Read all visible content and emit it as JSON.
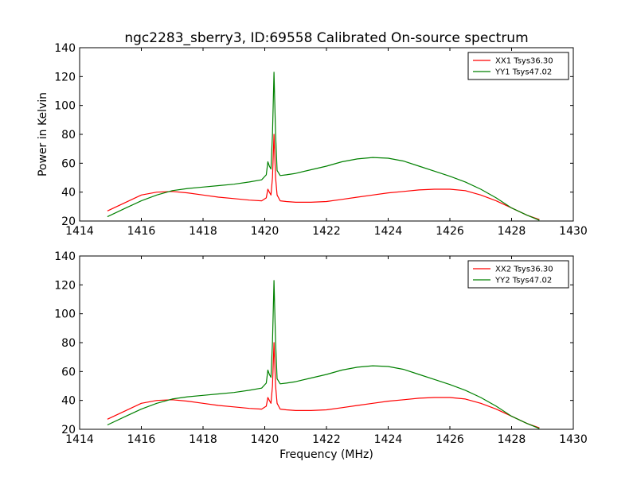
{
  "title": "ngc2283_sberry3, ID:69558 Calibrated On-source spectrum",
  "colors": {
    "XX": "#ff0000",
    "YY": "#008000"
  },
  "chart_data": [
    {
      "type": "line",
      "xlabel": "",
      "ylabel": "Power in Kelvin",
      "xlim": [
        1414,
        1430
      ],
      "ylim": [
        20,
        140
      ],
      "xticks": [
        "1414",
        "1416",
        "1418",
        "1420",
        "1422",
        "1424",
        "1426",
        "1428",
        "1430"
      ],
      "yticks": [
        "20",
        "40",
        "60",
        "80",
        "100",
        "120",
        "140"
      ],
      "legend_position": "top-right",
      "series": [
        {
          "name": "XX1 Tsys36.30",
          "color": "#ff0000",
          "x": [
            1414.9,
            1415.5,
            1416.0,
            1416.5,
            1417.0,
            1417.5,
            1418.0,
            1418.5,
            1419.0,
            1419.5,
            1419.9,
            1420.05,
            1420.1,
            1420.15,
            1420.2,
            1420.25,
            1420.3,
            1420.35,
            1420.4,
            1420.5,
            1420.7,
            1421.0,
            1421.5,
            1422.0,
            1422.5,
            1423.0,
            1423.5,
            1424.0,
            1424.5,
            1425.0,
            1425.5,
            1426.0,
            1426.5,
            1427.0,
            1427.5,
            1428.0,
            1428.5,
            1428.9
          ],
          "y": [
            27,
            33,
            38,
            40,
            40.5,
            39.5,
            38,
            36.5,
            35.5,
            34.5,
            34,
            36,
            42,
            40,
            38,
            50,
            80,
            50,
            38,
            34,
            33.5,
            33,
            33,
            33.5,
            35,
            36.5,
            38,
            39.5,
            40.5,
            41.5,
            42,
            42,
            41,
            38,
            34,
            29,
            24,
            21
          ]
        },
        {
          "name": "YY1 Tsys47.02",
          "color": "#008000",
          "x": [
            1414.9,
            1415.5,
            1416.0,
            1416.5,
            1417.0,
            1417.5,
            1418.0,
            1418.5,
            1419.0,
            1419.5,
            1419.9,
            1420.05,
            1420.1,
            1420.15,
            1420.2,
            1420.25,
            1420.3,
            1420.35,
            1420.4,
            1420.5,
            1420.7,
            1421.0,
            1421.5,
            1422.0,
            1422.5,
            1423.0,
            1423.5,
            1424.0,
            1424.5,
            1425.0,
            1425.5,
            1426.0,
            1426.5,
            1427.0,
            1427.5,
            1428.0,
            1428.5,
            1428.9
          ],
          "y": [
            23,
            29,
            34,
            38,
            41,
            42.5,
            43.5,
            44.5,
            45.5,
            47,
            48.5,
            52,
            61,
            58,
            56,
            80,
            123,
            80,
            55,
            51.5,
            52,
            53,
            55.5,
            58,
            61,
            63,
            64,
            63.5,
            61.5,
            58,
            54.5,
            51,
            47,
            42,
            36,
            29,
            24,
            20.5
          ]
        }
      ]
    },
    {
      "type": "line",
      "xlabel": "Frequency (MHz)",
      "ylabel": "",
      "xlim": [
        1414,
        1430
      ],
      "ylim": [
        20,
        140
      ],
      "xticks": [
        "1414",
        "1416",
        "1418",
        "1420",
        "1422",
        "1424",
        "1426",
        "1428",
        "1430"
      ],
      "yticks": [
        "20",
        "40",
        "60",
        "80",
        "100",
        "120",
        "140"
      ],
      "legend_position": "top-right",
      "series": [
        {
          "name": "XX2 Tsys36.30",
          "color": "#ff0000",
          "x": [
            1414.9,
            1415.5,
            1416.0,
            1416.5,
            1417.0,
            1417.5,
            1418.0,
            1418.5,
            1419.0,
            1419.5,
            1419.9,
            1420.05,
            1420.1,
            1420.15,
            1420.2,
            1420.25,
            1420.3,
            1420.35,
            1420.4,
            1420.5,
            1420.7,
            1421.0,
            1421.5,
            1422.0,
            1422.5,
            1423.0,
            1423.5,
            1424.0,
            1424.5,
            1425.0,
            1425.5,
            1426.0,
            1426.5,
            1427.0,
            1427.5,
            1428.0,
            1428.5,
            1428.9
          ],
          "y": [
            27,
            33,
            38,
            40,
            40.5,
            39.5,
            38,
            36.5,
            35.5,
            34.5,
            34,
            36,
            42,
            40,
            38,
            50,
            80,
            50,
            38,
            34,
            33.5,
            33,
            33,
            33.5,
            35,
            36.5,
            38,
            39.5,
            40.5,
            41.5,
            42,
            42,
            41,
            38,
            34,
            29,
            24,
            21
          ]
        },
        {
          "name": "YY2 Tsys47.02",
          "color": "#008000",
          "x": [
            1414.9,
            1415.5,
            1416.0,
            1416.5,
            1417.0,
            1417.5,
            1418.0,
            1418.5,
            1419.0,
            1419.5,
            1419.9,
            1420.05,
            1420.1,
            1420.15,
            1420.2,
            1420.25,
            1420.3,
            1420.35,
            1420.4,
            1420.5,
            1420.7,
            1421.0,
            1421.5,
            1422.0,
            1422.5,
            1423.0,
            1423.5,
            1424.0,
            1424.5,
            1425.0,
            1425.5,
            1426.0,
            1426.5,
            1427.0,
            1427.5,
            1428.0,
            1428.5,
            1428.9
          ],
          "y": [
            23,
            29,
            34,
            38,
            41,
            42.5,
            43.5,
            44.5,
            45.5,
            47,
            48.5,
            52,
            61,
            58,
            56,
            80,
            123,
            80,
            55,
            51.5,
            52,
            53,
            55.5,
            58,
            61,
            63,
            64,
            63.5,
            61.5,
            58,
            54.5,
            51,
            47,
            42,
            36,
            29,
            24,
            20.5
          ]
        }
      ]
    }
  ]
}
